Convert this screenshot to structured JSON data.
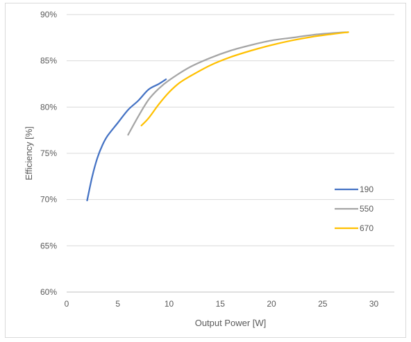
{
  "chart_data": {
    "type": "line",
    "xlabel": "Output Power [W]",
    "ylabel": "Efficiency [%]",
    "xlim": [
      0,
      32
    ],
    "ylim": [
      60,
      90
    ],
    "x_ticks": [
      0,
      5,
      10,
      15,
      20,
      25,
      30
    ],
    "x_tick_labels": [
      "0",
      "5",
      "10",
      "15",
      "20",
      "25",
      "30"
    ],
    "y_ticks": [
      60,
      65,
      70,
      75,
      80,
      85,
      90
    ],
    "y_tick_labels": [
      "60%",
      "65%",
      "70%",
      "75%",
      "80%",
      "85%",
      "90%"
    ],
    "grid": "horizontal",
    "legend": "right",
    "series": [
      {
        "name": "190",
        "color": "#4472c4",
        "x": [
          2.0,
          2.5,
          3.0,
          3.5,
          4.0,
          5.0,
          6.0,
          7.0,
          8.0,
          9.0,
          9.7
        ],
        "y": [
          69.9,
          72.5,
          74.5,
          75.9,
          76.9,
          78.3,
          79.7,
          80.7,
          81.9,
          82.5,
          83.0
        ]
      },
      {
        "name": "550",
        "color": "#a5a5a5",
        "x": [
          6.0,
          7.0,
          8.0,
          9.0,
          10.0,
          12.0,
          14.0,
          16.0,
          18.0,
          20.0,
          22.0,
          24.0,
          26.0,
          27.5
        ],
        "y": [
          77.0,
          79.0,
          80.8,
          82.0,
          82.9,
          84.3,
          85.3,
          86.1,
          86.7,
          87.2,
          87.5,
          87.8,
          88.0,
          88.1
        ]
      },
      {
        "name": "670",
        "color": "#ffc000",
        "x": [
          7.3,
          8.0,
          9.0,
          10.0,
          11.0,
          12.0,
          14.0,
          16.0,
          18.0,
          20.0,
          22.0,
          24.0,
          26.0,
          27.5
        ],
        "y": [
          78.0,
          78.8,
          80.3,
          81.6,
          82.6,
          83.3,
          84.5,
          85.4,
          86.1,
          86.7,
          87.2,
          87.6,
          87.9,
          88.1
        ]
      }
    ]
  }
}
